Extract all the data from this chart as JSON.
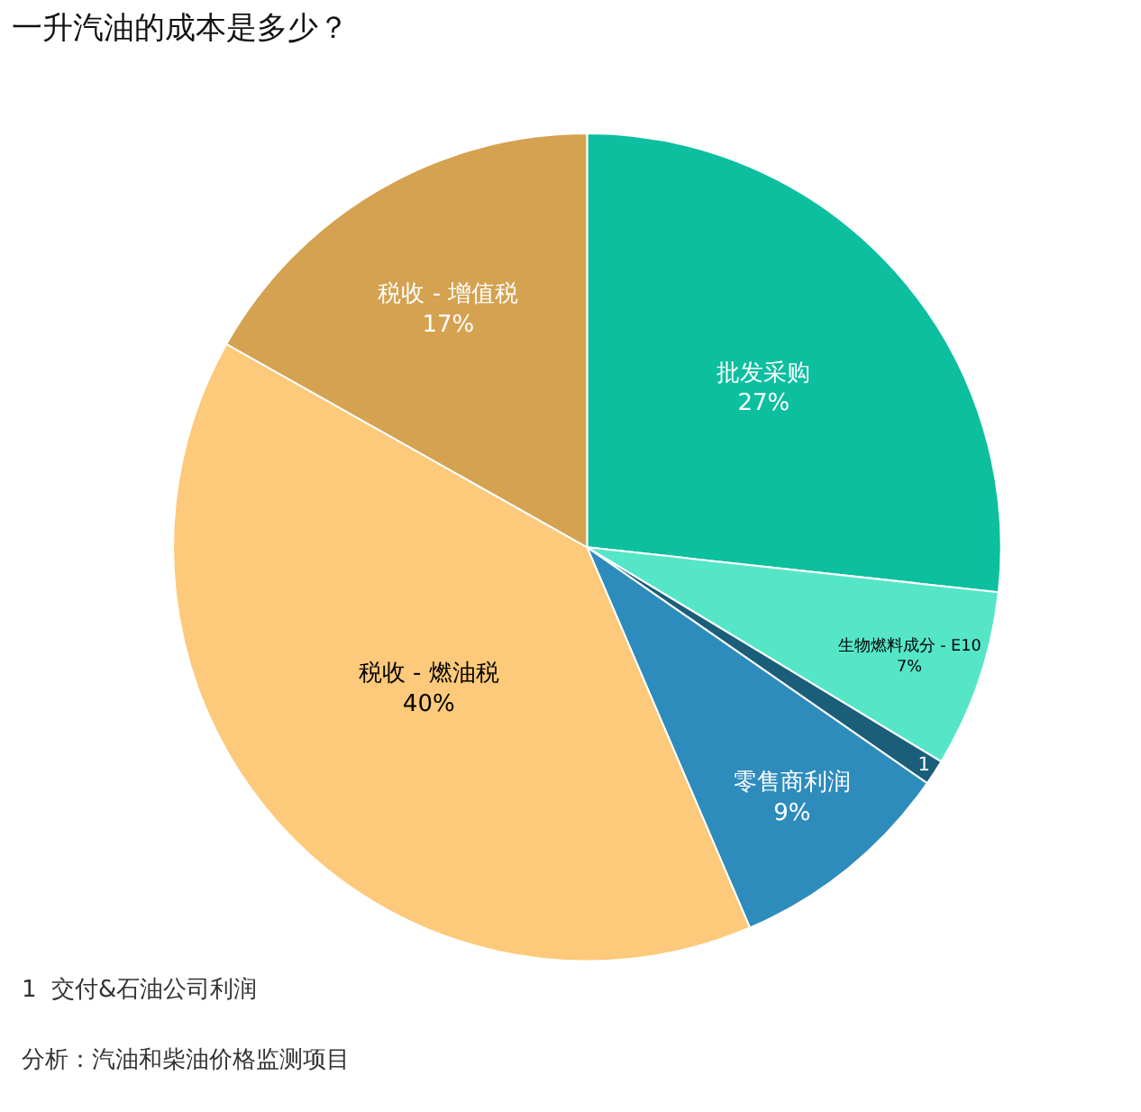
{
  "chart_data": {
    "type": "pie",
    "title": "一升汽油的成本是多少？",
    "categories": [
      "批发采购",
      "生物燃料成分 - E10",
      "1",
      "零售商利润",
      "税收 - 燃油税",
      "税收 - 增值税"
    ],
    "values": [
      27,
      7,
      1,
      9,
      40,
      17
    ],
    "value_labels": [
      "27%",
      "7%",
      null,
      "9%",
      "40%",
      "17%"
    ],
    "colors": [
      "#0bbf9f",
      "#55e6c8",
      "#1a5e7a",
      "#2e8cbc",
      "#fdc97a",
      "#d4a250"
    ],
    "annotations": [
      "1  交付&石油公司利润",
      "分析：汽油和柴油价格监测项目"
    ],
    "legend": false
  }
}
